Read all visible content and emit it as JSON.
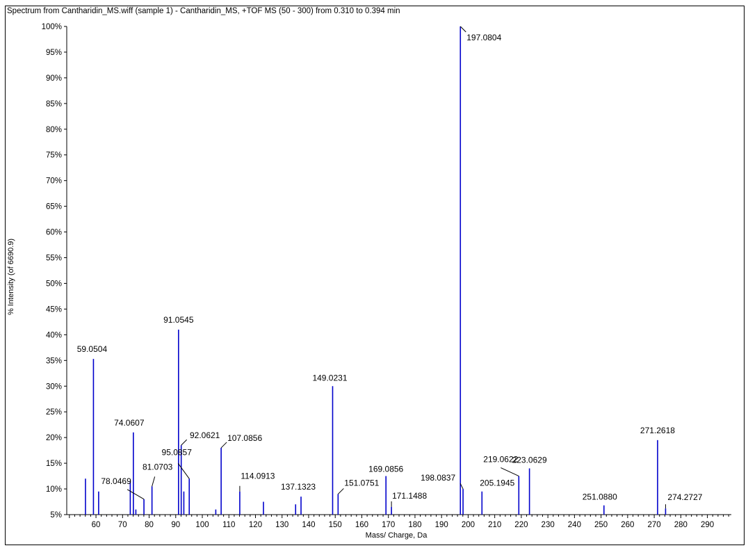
{
  "chart_data": {
    "type": "bar",
    "title": "Spectrum from Cantharidin_MS.wiff (sample 1) - Cantharidin_MS, +TOF MS (50 - 300) from 0.310 to 0.394 min",
    "xlabel": "Mass/ Charge, Da",
    "ylabel": "% Intensity (of 6690.9)",
    "xlim": [
      49,
      299
    ],
    "ylim": [
      5,
      100
    ],
    "xticks": [
      60,
      70,
      80,
      90,
      100,
      110,
      120,
      130,
      140,
      150,
      160,
      170,
      180,
      190,
      200,
      210,
      220,
      230,
      240,
      250,
      260,
      270,
      280,
      290
    ],
    "yticks": [
      100,
      95,
      90,
      85,
      80,
      75,
      70,
      65,
      60,
      55,
      50,
      45,
      40,
      35,
      30,
      25,
      20,
      15,
      10,
      5
    ],
    "ytick_suffix": "%",
    "series": [
      {
        "color": "#0000cc",
        "peaks": [
          {
            "x": 56.05,
            "y": 12.0
          },
          {
            "x": 59.0504,
            "y": 35.3,
            "label": "59.0504"
          },
          {
            "x": 61.0,
            "y": 9.5
          },
          {
            "x": 72.9,
            "y": 11.5
          },
          {
            "x": 74.0607,
            "y": 21.0,
            "label": "74.0607"
          },
          {
            "x": 75.0,
            "y": 6.0
          },
          {
            "x": 78.0469,
            "y": 8.0,
            "label": "78.0469"
          },
          {
            "x": 81.0703,
            "y": 10.5,
            "label": "81.0703"
          },
          {
            "x": 91.0545,
            "y": 41.0,
            "label": "91.0545"
          },
          {
            "x": 92.0621,
            "y": 18.5,
            "label": "92.0621"
          },
          {
            "x": 93.05,
            "y": 9.5
          },
          {
            "x": 95.0857,
            "y": 12.0,
            "label": "95.0857"
          },
          {
            "x": 105.07,
            "y": 6.0
          },
          {
            "x": 107.0856,
            "y": 18.0,
            "label": "107.0856"
          },
          {
            "x": 114.0913,
            "y": 9.5,
            "label": "114.0913"
          },
          {
            "x": 123.0,
            "y": 7.5
          },
          {
            "x": 135.1,
            "y": 7.0
          },
          {
            "x": 137.1323,
            "y": 8.5,
            "label": "137.1323"
          },
          {
            "x": 149.0231,
            "y": 30.0,
            "label": "149.0231"
          },
          {
            "x": 151.0751,
            "y": 9.0,
            "label": "151.0751"
          },
          {
            "x": 169.0856,
            "y": 12.5,
            "label": "169.0856"
          },
          {
            "x": 171.1488,
            "y": 6.5,
            "label": "171.1488"
          },
          {
            "x": 197.0804,
            "y": 100.0,
            "label": "197.0804"
          },
          {
            "x": 198.0837,
            "y": 10.0,
            "label": "198.0837"
          },
          {
            "x": 205.1945,
            "y": 9.5,
            "label": "205.1945"
          },
          {
            "x": 219.0622,
            "y": 12.5,
            "label": "219.0622"
          },
          {
            "x": 223.0629,
            "y": 14.0,
            "label": "223.0629"
          },
          {
            "x": 251.088,
            "y": 6.8,
            "label": "251.0880"
          },
          {
            "x": 271.2618,
            "y": 19.5,
            "label": "271.2618"
          },
          {
            "x": 274.2727,
            "y": 6.2,
            "label": "274.2727"
          }
        ]
      }
    ]
  }
}
